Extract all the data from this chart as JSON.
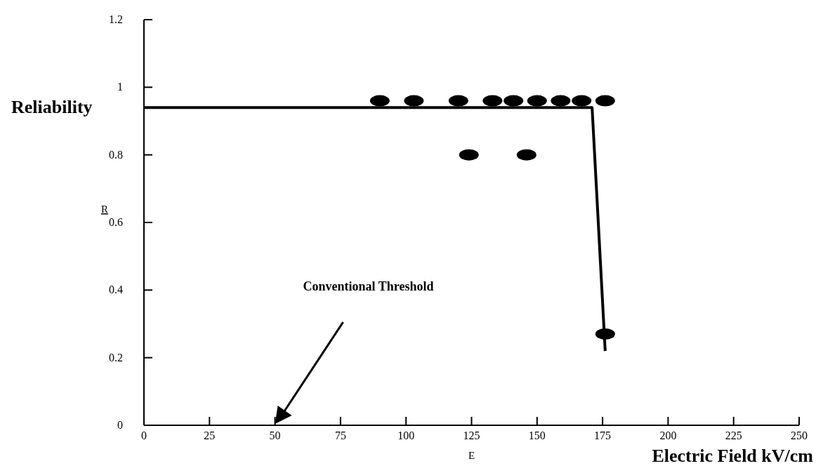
{
  "chart_data": {
    "type": "scatter",
    "xlabel": "Electric Field kV/cm",
    "ylabel": "Reliability",
    "xlim": [
      0,
      250
    ],
    "xticks": [
      0,
      25,
      50,
      75,
      100,
      125,
      150,
      175,
      200,
      225,
      250
    ],
    "ylim": [
      0,
      1.2
    ],
    "yticks": [
      0,
      0.2,
      0.4,
      0.6,
      0.8,
      1,
      1.2
    ],
    "marker": "circle",
    "series": [
      {
        "color": "#000000",
        "x": [
          90,
          103,
          120,
          133,
          141,
          150,
          159,
          167,
          176,
          124,
          146,
          176
        ],
        "values": [
          0.96,
          0.96,
          0.96,
          0.96,
          0.96,
          0.96,
          0.96,
          0.96,
          0.96,
          0.8,
          0.8,
          0.27
        ]
      },
      {
        "type": "line",
        "color": "#000000",
        "marker": "none",
        "line_style": "solid",
        "x": [
          0,
          171,
          176
        ],
        "values": [
          0.94,
          0.94,
          0.22
        ]
      }
    ],
    "annotations": [
      "Conventional Threshold",
      "R",
      "E"
    ]
  }
}
